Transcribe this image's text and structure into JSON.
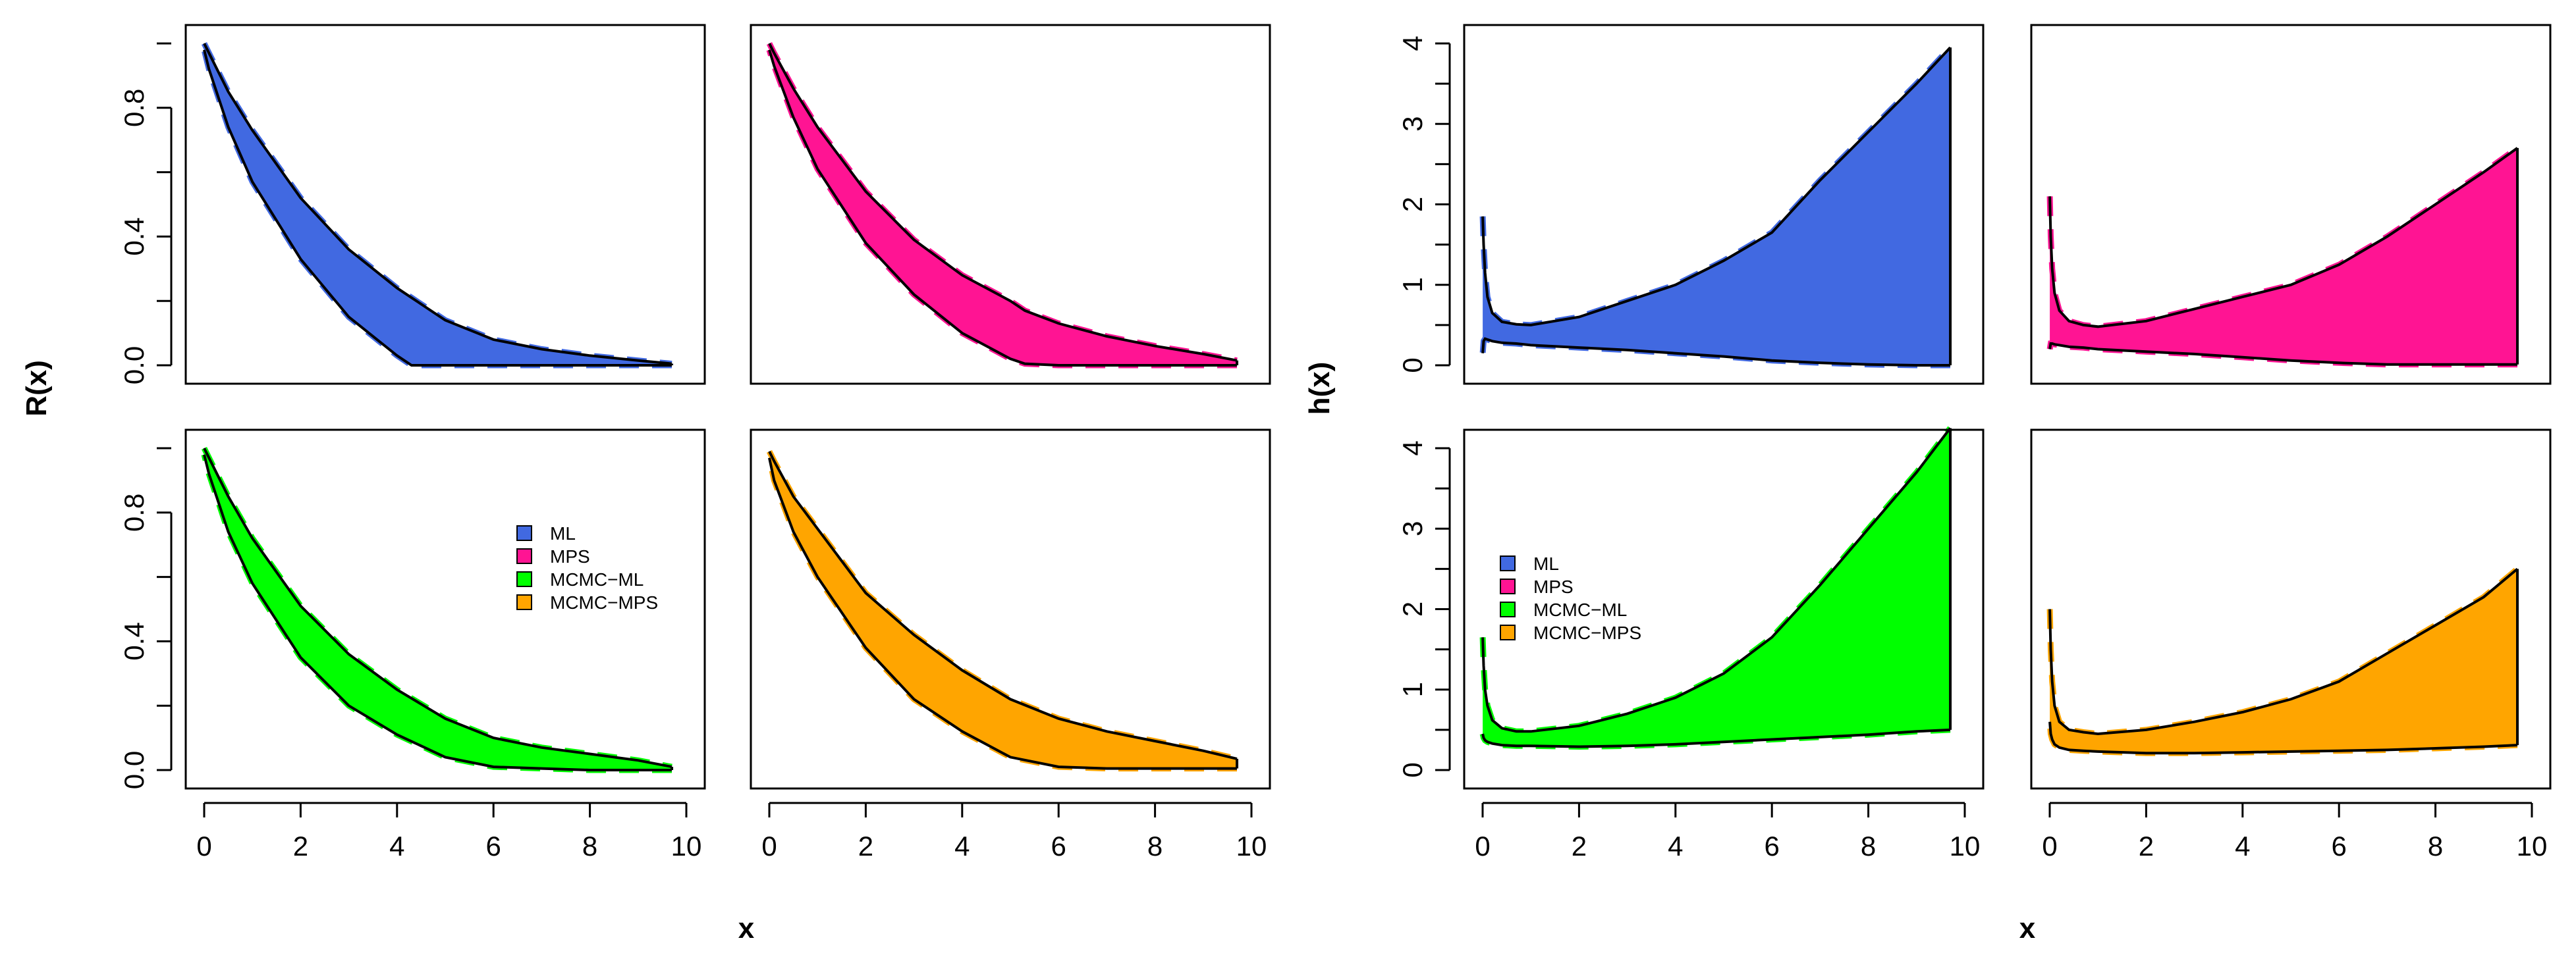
{
  "figure": {
    "left_group": {
      "ylabel": "R(x)",
      "xlabel": "x"
    },
    "right_group": {
      "ylabel": "h(x)",
      "xlabel": "x"
    }
  },
  "legend_items": [
    {
      "label": "ML",
      "color": "#4169E1"
    },
    {
      "label": "MPS",
      "color": "#FF1493"
    },
    {
      "label": "MCMC−ML",
      "color": "#00FF00"
    },
    {
      "label": "MCMC−MPS",
      "color": "#FFA500"
    }
  ],
  "chart_data": [
    {
      "type": "area",
      "group": "R",
      "panel": "top-left",
      "series": [
        {
          "name": "ML",
          "color": "#4169E1"
        }
      ],
      "x": [
        0,
        0.1,
        0.5,
        1,
        2,
        3,
        4,
        4.3,
        5,
        6,
        7,
        8,
        9,
        9.7
      ],
      "lower": [
        0.98,
        0.92,
        0.74,
        0.57,
        0.33,
        0.15,
        0.03,
        0.0,
        0.0,
        0.0,
        0.0,
        0.0,
        0.0,
        0.0
      ],
      "upper": [
        1.0,
        0.97,
        0.85,
        0.73,
        0.52,
        0.36,
        0.24,
        0.21,
        0.14,
        0.08,
        0.05,
        0.03,
        0.015,
        0.005
      ],
      "xlim": [
        0,
        10
      ],
      "ylim": [
        0,
        1.0
      ],
      "xticks": [
        "0",
        "2",
        "4",
        "6",
        "8",
        "10"
      ],
      "xtick_values": [
        0,
        2,
        4,
        6,
        8,
        10
      ],
      "yticks": [
        "0.0",
        "0.4",
        "0.8"
      ],
      "ytick_values": [
        0,
        0.4,
        0.8
      ],
      "show_x_axis": false,
      "show_y_axis": true,
      "legend": false
    },
    {
      "type": "area",
      "group": "R",
      "panel": "top-right",
      "series": [
        {
          "name": "MPS",
          "color": "#FF1493"
        }
      ],
      "x": [
        0,
        0.1,
        0.5,
        1,
        2,
        3,
        4,
        5,
        5.3,
        6,
        7,
        8,
        9,
        9.7
      ],
      "lower": [
        0.98,
        0.93,
        0.77,
        0.61,
        0.38,
        0.22,
        0.1,
        0.02,
        0.005,
        0.0,
        0.0,
        0.0,
        0.0,
        0.0
      ],
      "upper": [
        1.0,
        0.97,
        0.86,
        0.74,
        0.54,
        0.39,
        0.28,
        0.2,
        0.17,
        0.13,
        0.09,
        0.06,
        0.035,
        0.015
      ],
      "xlim": [
        0,
        10
      ],
      "ylim": [
        0,
        1.0
      ],
      "xticks": [
        "0",
        "2",
        "4",
        "6",
        "8",
        "10"
      ],
      "xtick_values": [
        0,
        2,
        4,
        6,
        8,
        10
      ],
      "yticks": [
        "0.0",
        "0.4",
        "0.8"
      ],
      "ytick_values": [
        0,
        0.4,
        0.8
      ],
      "show_x_axis": false,
      "show_y_axis": false,
      "legend": false
    },
    {
      "type": "area",
      "group": "R",
      "panel": "bottom-left",
      "series": [
        {
          "name": "MCMC−ML",
          "color": "#00FF00"
        }
      ],
      "x": [
        0,
        0.1,
        0.5,
        1,
        2,
        3,
        4,
        5,
        6,
        7,
        8,
        9,
        9.7
      ],
      "lower": [
        0.98,
        0.92,
        0.74,
        0.58,
        0.35,
        0.2,
        0.11,
        0.04,
        0.01,
        0.005,
        0.0,
        0.0,
        0.0
      ],
      "upper": [
        1.0,
        0.97,
        0.85,
        0.72,
        0.51,
        0.36,
        0.25,
        0.16,
        0.1,
        0.07,
        0.05,
        0.03,
        0.01
      ],
      "xlim": [
        0,
        10
      ],
      "ylim": [
        0,
        1.0
      ],
      "xticks": [
        "0",
        "2",
        "4",
        "6",
        "8",
        "10"
      ],
      "xtick_values": [
        0,
        2,
        4,
        6,
        8,
        10
      ],
      "yticks": [
        "0.0",
        "0.4",
        "0.8"
      ],
      "ytick_values": [
        0,
        0.4,
        0.8
      ],
      "show_x_axis": true,
      "show_y_axis": true,
      "legend": true
    },
    {
      "type": "area",
      "group": "R",
      "panel": "bottom-right",
      "series": [
        {
          "name": "MCMC−MPS",
          "color": "#FFA500"
        }
      ],
      "x": [
        0,
        0.1,
        0.5,
        1,
        2,
        3,
        4,
        5,
        6,
        7,
        8,
        9,
        9.7
      ],
      "lower": [
        0.97,
        0.9,
        0.74,
        0.6,
        0.38,
        0.22,
        0.12,
        0.04,
        0.01,
        0.005,
        0.005,
        0.005,
        0.005
      ],
      "upper": [
        0.99,
        0.96,
        0.85,
        0.75,
        0.55,
        0.42,
        0.31,
        0.22,
        0.16,
        0.12,
        0.09,
        0.06,
        0.035
      ],
      "xlim": [
        0,
        10
      ],
      "ylim": [
        0,
        1.0
      ],
      "xticks": [
        "0",
        "2",
        "4",
        "6",
        "8",
        "10"
      ],
      "xtick_values": [
        0,
        2,
        4,
        6,
        8,
        10
      ],
      "yticks": [
        "0.0",
        "0.4",
        "0.8"
      ],
      "ytick_values": [
        0,
        0.4,
        0.8
      ],
      "show_x_axis": true,
      "show_y_axis": false,
      "legend": false
    },
    {
      "type": "area",
      "group": "h",
      "panel": "top-left",
      "series": [
        {
          "name": "ML",
          "color": "#4169E1"
        }
      ],
      "x": [
        0.001,
        0.02,
        0.05,
        0.1,
        0.2,
        0.4,
        0.7,
        1,
        2,
        3,
        4,
        5,
        6,
        7,
        8,
        9,
        9.7
      ],
      "lower": [
        0.15,
        0.3,
        0.33,
        0.32,
        0.3,
        0.28,
        0.27,
        0.25,
        0.22,
        0.19,
        0.15,
        0.11,
        0.06,
        0.03,
        0.01,
        0.0,
        0.0
      ],
      "upper": [
        1.85,
        1.5,
        1.15,
        0.85,
        0.65,
        0.54,
        0.51,
        0.5,
        0.6,
        0.8,
        1.0,
        1.3,
        1.65,
        2.3,
        2.9,
        3.5,
        3.95
      ],
      "xlim": [
        0,
        10
      ],
      "ylim": [
        0,
        4
      ],
      "xticks": [
        "0",
        "2",
        "4",
        "6",
        "8",
        "10"
      ],
      "xtick_values": [
        0,
        2,
        4,
        6,
        8,
        10
      ],
      "yticks": [
        "0",
        "1",
        "2",
        "3",
        "4"
      ],
      "ytick_values": [
        0,
        1,
        2,
        3,
        4
      ],
      "show_x_axis": false,
      "show_y_axis": true,
      "legend": false
    },
    {
      "type": "area",
      "group": "h",
      "panel": "top-right",
      "series": [
        {
          "name": "MPS",
          "color": "#FF1493"
        }
      ],
      "x": [
        0.001,
        0.02,
        0.05,
        0.1,
        0.2,
        0.4,
        0.7,
        1,
        2,
        3,
        4,
        5,
        6,
        7,
        8,
        9,
        9.7
      ],
      "lower": [
        0.2,
        0.27,
        0.27,
        0.26,
        0.25,
        0.23,
        0.22,
        0.2,
        0.17,
        0.14,
        0.1,
        0.06,
        0.03,
        0.01,
        0.01,
        0.01,
        0.01
      ],
      "upper": [
        2.1,
        1.6,
        1.2,
        0.9,
        0.68,
        0.55,
        0.5,
        0.48,
        0.55,
        0.7,
        0.85,
        1.0,
        1.25,
        1.6,
        2.0,
        2.4,
        2.7
      ],
      "xlim": [
        0,
        10
      ],
      "ylim": [
        0,
        4
      ],
      "xticks": [
        "0",
        "2",
        "4",
        "6",
        "8",
        "10"
      ],
      "xtick_values": [
        0,
        2,
        4,
        6,
        8,
        10
      ],
      "yticks": [
        "0",
        "1",
        "2",
        "3",
        "4"
      ],
      "ytick_values": [
        0,
        1,
        2,
        3,
        4
      ],
      "show_x_axis": false,
      "show_y_axis": false,
      "legend": false
    },
    {
      "type": "area",
      "group": "h",
      "panel": "bottom-left",
      "series": [
        {
          "name": "MCMC−ML",
          "color": "#00FF00"
        }
      ],
      "x": [
        0.001,
        0.02,
        0.05,
        0.1,
        0.2,
        0.4,
        0.7,
        1,
        2,
        3,
        4,
        5,
        6,
        7,
        8,
        9,
        9.7
      ],
      "lower": [
        0.45,
        0.4,
        0.37,
        0.35,
        0.33,
        0.31,
        0.3,
        0.3,
        0.29,
        0.3,
        0.32,
        0.35,
        0.38,
        0.41,
        0.44,
        0.48,
        0.5
      ],
      "upper": [
        1.65,
        1.3,
        1.0,
        0.8,
        0.62,
        0.52,
        0.48,
        0.48,
        0.55,
        0.7,
        0.9,
        1.2,
        1.65,
        2.3,
        3.0,
        3.7,
        4.25
      ],
      "xlim": [
        0,
        10
      ],
      "ylim": [
        0,
        4
      ],
      "xticks": [
        "0",
        "2",
        "4",
        "6",
        "8",
        "10"
      ],
      "xtick_values": [
        0,
        2,
        4,
        6,
        8,
        10
      ],
      "yticks": [
        "0",
        "1",
        "2",
        "3",
        "4"
      ],
      "ytick_values": [
        0,
        1,
        2,
        3,
        4
      ],
      "show_x_axis": true,
      "show_y_axis": true,
      "legend": true
    },
    {
      "type": "area",
      "group": "h",
      "panel": "bottom-right",
      "series": [
        {
          "name": "MCMC−MPS",
          "color": "#FFA500"
        }
      ],
      "x": [
        0.001,
        0.02,
        0.05,
        0.1,
        0.2,
        0.4,
        0.7,
        1,
        2,
        3,
        4,
        5,
        6,
        7,
        8,
        9,
        9.7
      ],
      "lower": [
        0.6,
        0.45,
        0.38,
        0.32,
        0.28,
        0.25,
        0.24,
        0.23,
        0.21,
        0.21,
        0.22,
        0.23,
        0.24,
        0.25,
        0.27,
        0.29,
        0.31
      ],
      "upper": [
        2.0,
        1.5,
        1.1,
        0.8,
        0.6,
        0.5,
        0.47,
        0.45,
        0.5,
        0.6,
        0.72,
        0.88,
        1.1,
        1.45,
        1.8,
        2.15,
        2.5
      ],
      "xlim": [
        0,
        10
      ],
      "ylim": [
        0,
        4
      ],
      "xticks": [
        "0",
        "2",
        "4",
        "6",
        "8",
        "10"
      ],
      "xtick_values": [
        0,
        2,
        4,
        6,
        8,
        10
      ],
      "yticks": [
        "0",
        "1",
        "2",
        "3",
        "4"
      ],
      "ytick_values": [
        0,
        1,
        2,
        3,
        4
      ],
      "show_x_axis": true,
      "show_y_axis": false,
      "legend": false
    }
  ]
}
